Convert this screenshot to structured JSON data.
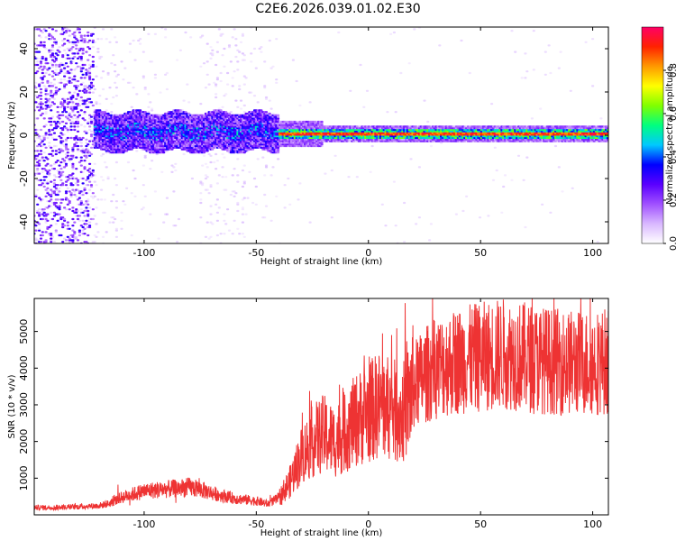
{
  "title": "C2E6.2026.039.01.02.E30",
  "chart_data": [
    {
      "type": "heatmap",
      "xlabel": "Height of straight line (km)",
      "ylabel": "Frequency (Hz)",
      "xlim": [
        -149,
        107
      ],
      "ylim": [
        -50,
        50
      ],
      "xticks": [
        -100,
        -50,
        0,
        50,
        100
      ],
      "yticks": [
        -40,
        -20,
        0,
        20,
        40
      ],
      "xtick_labels": [
        "-100",
        "-50",
        "0",
        "50",
        "100"
      ],
      "ytick_labels": [
        "-40",
        "-20",
        "0",
        "20",
        "40"
      ],
      "colorbar": {
        "label": "Normalized spectral amplitude",
        "range": [
          0,
          1
        ],
        "ticks": [
          "0.0",
          "0.2",
          "0.4",
          "0.6",
          "0.8"
        ],
        "colors": [
          "#ffffff",
          "#d9b8ff",
          "#a050ff",
          "#5a00ff",
          "#0000ff",
          "#00c8ff",
          "#00ff80",
          "#80ff00",
          "#ffff00",
          "#ff9900",
          "#ff2200",
          "#ff0066"
        ]
      },
      "description_of_regions": [
        {
          "x_range": [
            -149,
            -122
          ],
          "note": "broadband noise across all frequencies"
        },
        {
          "x_range": [
            -122,
            -40
          ],
          "note": "signal band near 0 Hz, amplitude ~0.2-0.4, width ~±8 Hz"
        },
        {
          "x_range": [
            -40,
            107
          ],
          "note": "narrow signal band at ~0-1 Hz, amplitude ~0.8-1.0"
        }
      ]
    },
    {
      "type": "line",
      "xlabel": "Height of straight line (km)",
      "ylabel": "SNR (10 * v/v)",
      "xlim": [
        -149,
        107
      ],
      "ylim": [
        0,
        5900
      ],
      "xticks": [
        -100,
        -50,
        0,
        50,
        100
      ],
      "yticks": [
        1000,
        2000,
        3000,
        4000,
        5000
      ],
      "xtick_labels": [
        "-100",
        "-50",
        "0",
        "50",
        "100"
      ],
      "ytick_labels": [
        "1000",
        "2000",
        "3000",
        "4000",
        "5000"
      ],
      "color": "#ee3333",
      "series": [
        {
          "x": [
            -149,
            -140,
            -130,
            -120,
            -115,
            -110,
            -100,
            -90,
            -80,
            -75,
            -70,
            -60,
            -50,
            -45,
            -40,
            -35,
            -30,
            -25,
            -20,
            -15,
            -10,
            -5,
            0,
            5,
            10,
            15,
            20,
            25,
            30,
            40,
            50,
            60,
            70,
            80,
            90,
            100,
            107
          ],
          "values": [
            200,
            200,
            220,
            250,
            320,
            480,
            650,
            700,
            750,
            700,
            600,
            450,
            380,
            300,
            450,
            900,
            1600,
            2000,
            2200,
            2000,
            2300,
            2600,
            2800,
            3000,
            2900,
            2700,
            3500,
            3800,
            4000,
            4200,
            4300,
            4400,
            4300,
            4200,
            4150,
            4150,
            4200
          ]
        }
      ]
    }
  ]
}
